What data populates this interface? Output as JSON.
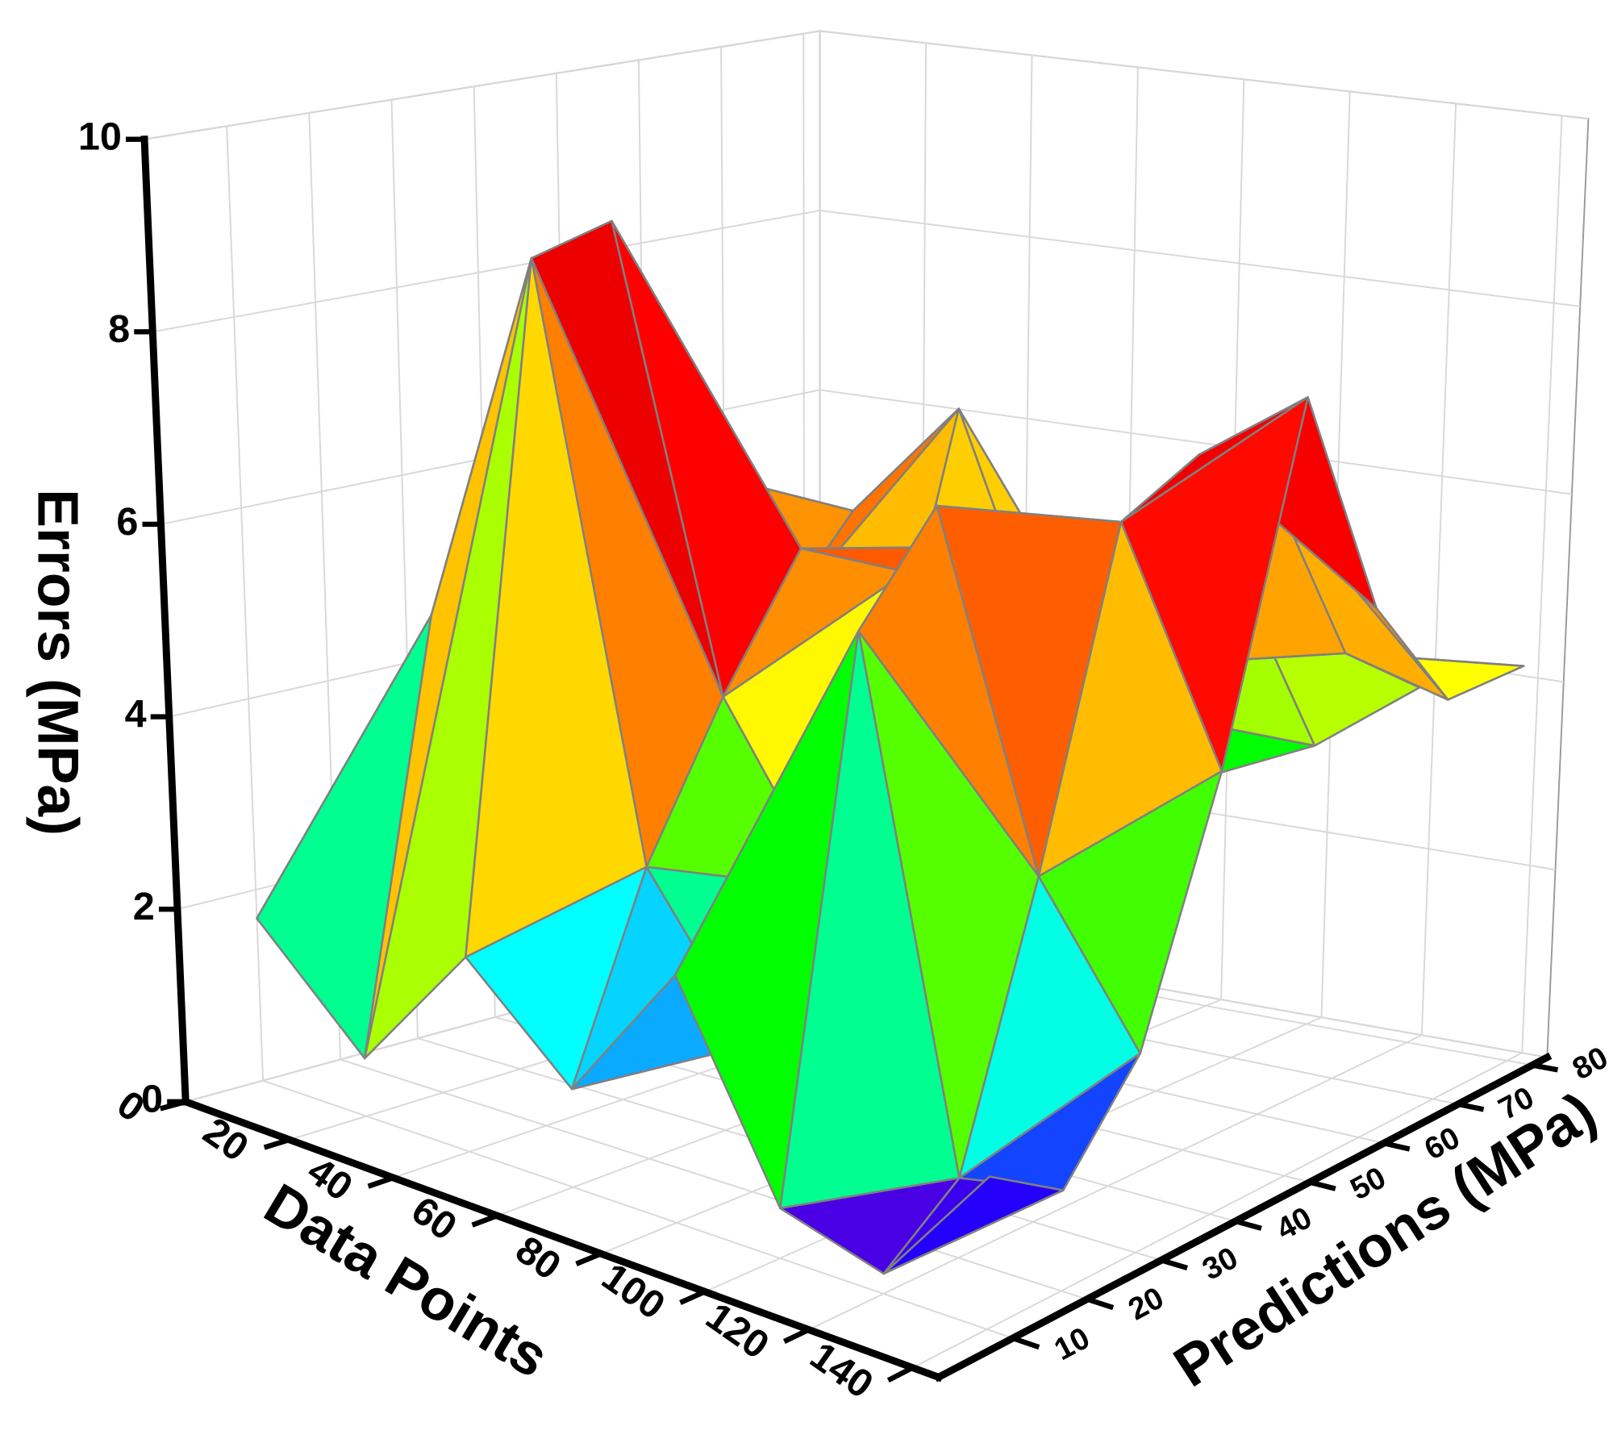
{
  "chart_data": {
    "type": "surface",
    "xlabel": "Data Points",
    "ylabel": "Predictions (MPa)",
    "zlabel": "Errors (MPa)",
    "x": [
      0,
      20,
      40,
      60,
      80,
      100,
      120,
      140
    ],
    "y": [
      10,
      20,
      30,
      40,
      50,
      60,
      70,
      80
    ],
    "z": [
      [
        1.7,
        0.6,
        2.0,
        1.0,
        2.5,
        0.5,
        0.2,
        1.5
      ],
      [
        2.5,
        5.0,
        9.0,
        3.0,
        1.5,
        6.0,
        0.8,
        1.0
      ],
      [
        3.0,
        6.2,
        9.2,
        4.5,
        2.8,
        7.0,
        3.5,
        2.0
      ],
      [
        4.8,
        4.0,
        7.5,
        5.8,
        5.8,
        2.5,
        6.8,
        4.5
      ],
      [
        3.0,
        6.0,
        4.5,
        3.5,
        5.8,
        5.5,
        7.2,
        8.0
      ],
      [
        2.0,
        3.5,
        5.5,
        6.8,
        4.0,
        4.5,
        6.5,
        5.5
      ],
      [
        1.5,
        2.5,
        3.0,
        4.0,
        3.5,
        5.0,
        4.5,
        4.2
      ],
      [
        1.0,
        1.5,
        2.0,
        3.0,
        2.5,
        3.0,
        3.8,
        4.2
      ]
    ],
    "xlim": [
      0,
      145
    ],
    "ylim": [
      0,
      82
    ],
    "zlim": [
      0,
      10
    ],
    "xticks": [
      0,
      20,
      40,
      60,
      80,
      100,
      120,
      140
    ],
    "yticks": [
      10,
      20,
      30,
      40,
      50,
      60,
      70,
      80
    ],
    "zticks": [
      0,
      2,
      4,
      6,
      8,
      10
    ],
    "grid": true,
    "mesh_color": "#808080",
    "colormap": [
      {
        "value": 0,
        "color": "#7a00c8"
      },
      {
        "value": 1,
        "color": "#1a00ff"
      },
      {
        "value": 2,
        "color": "#00ffff"
      },
      {
        "value": 3,
        "color": "#00ff00"
      },
      {
        "value": 4.3,
        "color": "#ffff00"
      },
      {
        "value": 5.5,
        "color": "#ff8000"
      },
      {
        "value": 6.5,
        "color": "#ff0000"
      },
      {
        "value": 10,
        "color": "#c00000"
      }
    ]
  }
}
